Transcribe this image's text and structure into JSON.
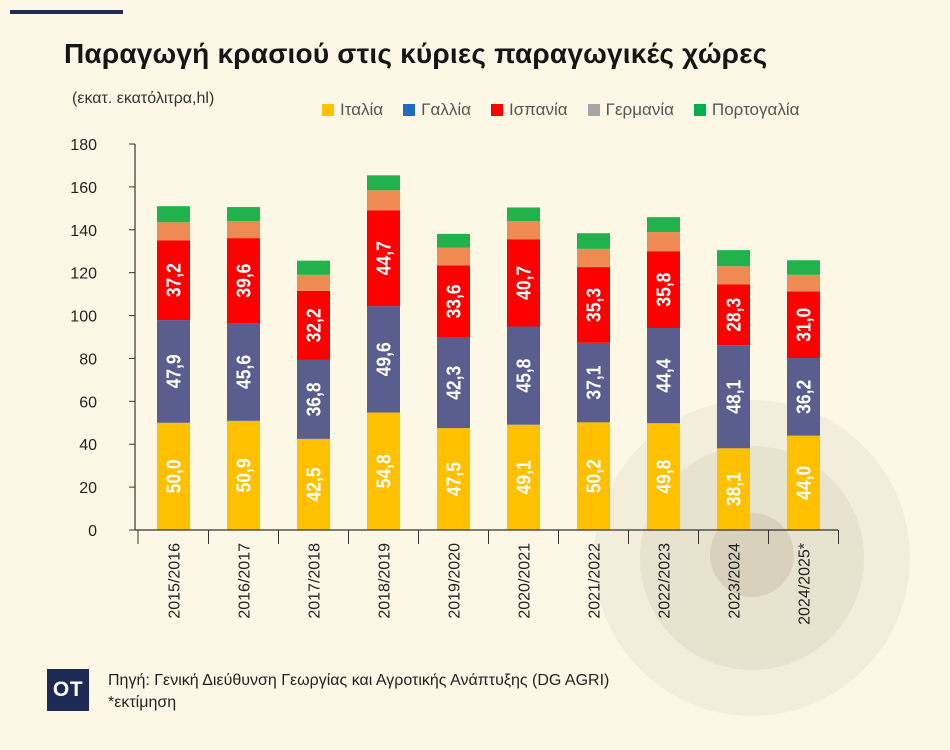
{
  "header": {
    "title": "Παραγωγή κρασιού στις κύριες παραγωγικές χώρες",
    "unit": "(εκατ. εκατόλιτρα,hl)"
  },
  "legend": [
    {
      "label": "Ιταλία",
      "color": "#ffc000"
    },
    {
      "label": "Γαλλία",
      "color": "#1f6bc4"
    },
    {
      "label": "Ισπανία",
      "color": "#ff0000"
    },
    {
      "label": "Γερμανία",
      "color": "#a6a6a6"
    },
    {
      "label": "Πορτογαλία",
      "color": "#00b050"
    }
  ],
  "chart_data": {
    "type": "bar",
    "stacked": true,
    "categories": [
      "2015/2016",
      "2016/2017",
      "2017/2018",
      "2018/2019",
      "2019/2020",
      "2020/2021",
      "2021/2022",
      "2022/2023",
      "2023/2024",
      "2024/2025*"
    ],
    "series": [
      {
        "name": "Ιταλία",
        "color": "#ffc000",
        "labeled": true,
        "values": [
          50.0,
          50.9,
          42.5,
          54.8,
          47.5,
          49.1,
          50.2,
          49.8,
          38.1,
          44.0
        ]
      },
      {
        "name": "Γαλλία",
        "color": "#5a5e8e",
        "labeled": true,
        "values": [
          47.9,
          45.6,
          36.8,
          49.6,
          42.3,
          45.8,
          37.1,
          44.4,
          48.1,
          36.2
        ]
      },
      {
        "name": "Ισπανία",
        "color": "#ff0000",
        "labeled": true,
        "values": [
          37.2,
          39.6,
          32.2,
          44.7,
          33.6,
          40.7,
          35.3,
          35.8,
          28.3,
          31.0
        ]
      },
      {
        "name": "Γερμανία",
        "color": "#ee8a52",
        "labeled": false,
        "values": [
          8.4,
          8.0,
          7.5,
          9.3,
          8.2,
          8.4,
          8.5,
          8.9,
          8.5,
          7.8
        ]
      },
      {
        "name": "Πορτογαλία",
        "color": "#22b24c",
        "labeled": false,
        "values": [
          7.5,
          6.5,
          6.6,
          7.0,
          6.5,
          6.4,
          7.3,
          7.0,
          7.5,
          6.8
        ]
      }
    ],
    "yticks": [
      0,
      20,
      40,
      60,
      80,
      100,
      120,
      140,
      160,
      180
    ],
    "ylim": [
      0,
      180
    ],
    "grid": false,
    "legend_position": "top-right"
  },
  "footer": {
    "logo": "OT",
    "source": "Πηγή: Γενική Διεύθυνση Γεωργίας και Αγροτικής Ανάπτυξης (DG AGRI)",
    "note": "*εκτίμηση"
  }
}
